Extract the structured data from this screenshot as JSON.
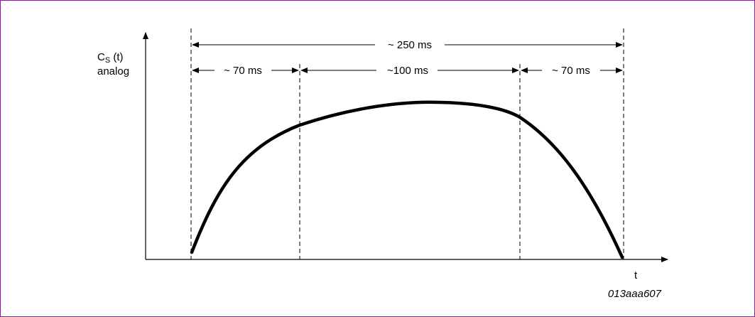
{
  "colors": {
    "frame": "#7a2a7e",
    "ink": "#000000",
    "background": "#ffffff"
  },
  "y_axis": {
    "symbol": "C",
    "subscript": "S",
    "argument": " (t)",
    "line2": "analog"
  },
  "x_axis": {
    "label": "t"
  },
  "intervals": {
    "total": "~ 250 ms",
    "rise": "~ 70 ms",
    "plateau": "~100 ms",
    "fall": "~ 70 ms"
  },
  "figure_id": "013aaa607"
}
